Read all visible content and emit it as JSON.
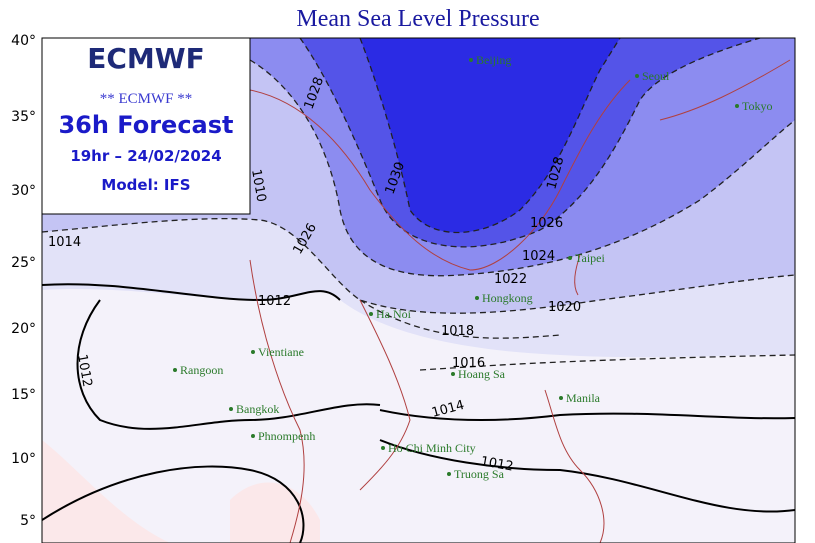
{
  "title": "Mean Sea Level Pressure",
  "logo": "ECMWF",
  "info": {
    "line1": "** ECMWF **",
    "line2": "36h Forecast",
    "line3": "19hr – 24/02/2024",
    "line4": "Model: IFS"
  },
  "latitude_labels": [
    "40°",
    "35°",
    "30°",
    "25°",
    "20°",
    "15°",
    "10°",
    "5°"
  ],
  "cities": [
    "Beijing",
    "Seoul",
    "Tokyo",
    "Taipei",
    "Hongkong",
    "Ha Noi",
    "Vientiane",
    "Rangoon",
    "Bangkok",
    "Phnompenh",
    "Ho Chi Minh City",
    "Hoang Sa",
    "Truong Sa",
    "Manila"
  ],
  "contour_labels": [
    "1030",
    "1028",
    "1026",
    "1024",
    "1022",
    "1020",
    "1018",
    "1016",
    "1014",
    "1012",
    "1012",
    "1012",
    "1014",
    "1010",
    "1028",
    "1026"
  ]
}
